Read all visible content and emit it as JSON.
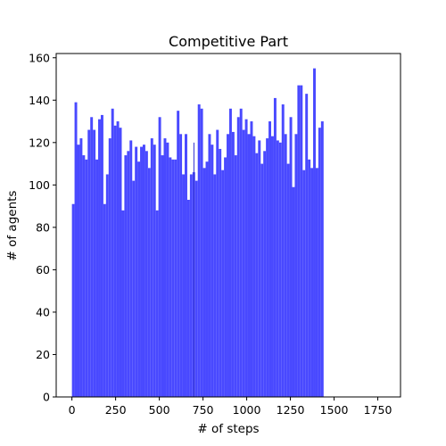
{
  "chart_data": {
    "type": "bar",
    "title": "Competitive Part",
    "xlabel": "# of steps",
    "ylabel": "# of agents",
    "xlim": [
      -90,
      1880
    ],
    "ylim": [
      0,
      162
    ],
    "xticks": [
      0,
      250,
      500,
      750,
      1000,
      1250,
      1500,
      1750
    ],
    "yticks": [
      0,
      20,
      40,
      60,
      80,
      100,
      120,
      140,
      160
    ],
    "bin_width": 15,
    "bin_start": 0,
    "bar_color": "#4949ff",
    "marker_line": {
      "x": 698,
      "color": "#2f2fd0"
    },
    "grid": false,
    "values": [
      91,
      139,
      119,
      122,
      114,
      112,
      126,
      132,
      126,
      112,
      131,
      133,
      91,
      105,
      122,
      136,
      128,
      130,
      127,
      88,
      114,
      116,
      121,
      102,
      118,
      111,
      118,
      119,
      116,
      108,
      122,
      119,
      88,
      132,
      114,
      122,
      120,
      113,
      112,
      112,
      135,
      124,
      105,
      124,
      93,
      105,
      106,
      102,
      138,
      136,
      108,
      111,
      124,
      119,
      105,
      126,
      117,
      107,
      113,
      124,
      136,
      125,
      114,
      132,
      136,
      126,
      131,
      124,
      130,
      123,
      115,
      121,
      110,
      116,
      122,
      130,
      123,
      141,
      121,
      120,
      138,
      124,
      110,
      132,
      99,
      124,
      147,
      147,
      107,
      143,
      112,
      108,
      155,
      108,
      127,
      130
    ]
  }
}
